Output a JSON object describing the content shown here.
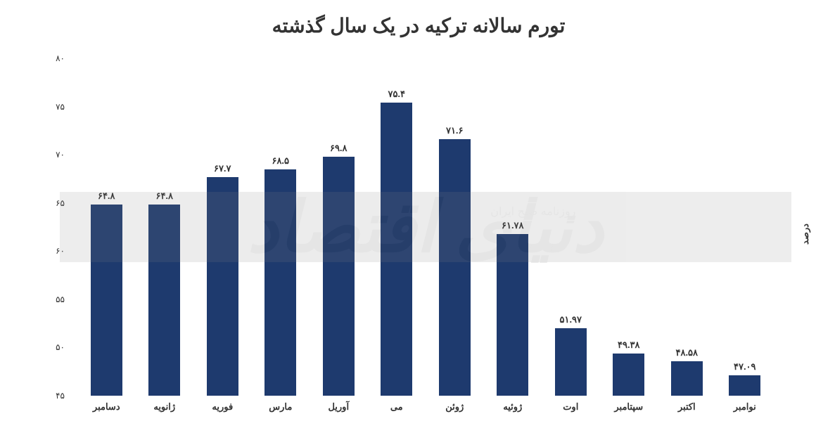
{
  "chart": {
    "type": "bar",
    "title": "تورم سالانه ترکیه در یک سال گذشته",
    "title_fontsize": 28,
    "ylabel": "درصد",
    "label_fontsize": 13,
    "ylim": [
      45,
      80
    ],
    "ytick_step": 5,
    "yticks": [
      "۴۵",
      "۵۰",
      "۵۵",
      "۶۰",
      "۶۵",
      "۷۰",
      "۷۵",
      "۸۰"
    ],
    "ytick_values": [
      45,
      50,
      55,
      60,
      65,
      70,
      75,
      80
    ],
    "categories": [
      "دسامبر",
      "ژانویه",
      "فوریه",
      "مارس",
      "آوریل",
      "می",
      "ژوئن",
      "ژوئیه",
      "اوت",
      "سپتامبر",
      "اکتبر",
      "نوامبر"
    ],
    "values": [
      64.8,
      64.8,
      67.7,
      68.5,
      69.8,
      75.4,
      71.6,
      61.78,
      51.97,
      49.38,
      48.58,
      47.09
    ],
    "value_labels": [
      "۶۴.۸",
      "۶۴.۸",
      "۶۷.۷",
      "۶۸.۵",
      "۶۹.۸",
      "۷۵.۴",
      "۷۱.۶",
      "۶۱.۷۸",
      "۵۱.۹۷",
      "۴۹.۳۸",
      "۴۸.۵۸",
      "۴۷.۰۹"
    ],
    "bar_color": "#1e3a6e",
    "background_color": "#ffffff",
    "value_fontsize": 13,
    "axis_fontsize": 13,
    "bar_width": 0.55
  },
  "watermark": {
    "main": "دنیای اقتصاد",
    "sub": "روزنامه صبح ایران",
    "opacity": 0.15,
    "band_color": "#888888"
  }
}
